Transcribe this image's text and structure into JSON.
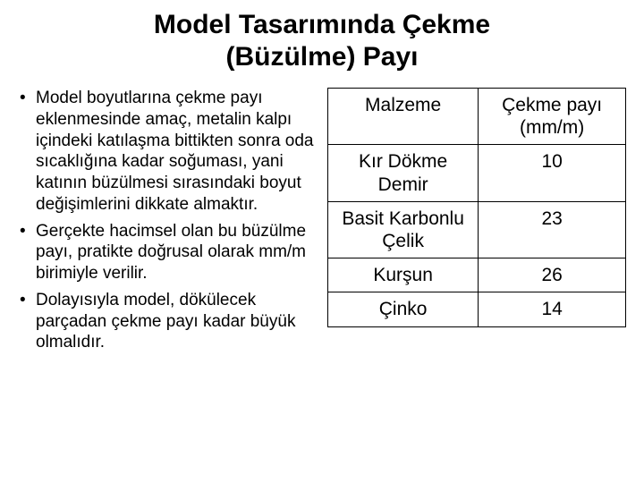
{
  "title_line1": "Model Tasarımında Çekme",
  "title_line2": "(Büzülme) Payı",
  "bullets": [
    "Model boyutlarına çekme payı eklenmesinde amaç, metalin kalpı içindeki katılaşma bittikten sonra oda sıcaklığına kadar soğuması, yani katının büzülmesi sırasındaki boyut değişimlerini dikkate almaktır.",
    "Gerçekte hacimsel olan bu büzülme payı, pratikte doğrusal olarak mm/m birimiyle verilir.",
    "Dolayısıyla model, dökülecek parçadan çekme payı kadar büyük olmalıdır."
  ],
  "table": {
    "columns": [
      "Malzeme",
      "Çekme payı (mm/m)"
    ],
    "rows": [
      [
        "Kır Dökme Demir",
        "10"
      ],
      [
        "Basit Karbonlu Çelik",
        "23"
      ],
      [
        "Kurşun",
        "26"
      ],
      [
        "Çinko",
        "14"
      ]
    ],
    "border_color": "#000000",
    "background_color": "#ffffff",
    "header_fontsize": 21,
    "cell_fontsize": 21
  },
  "colors": {
    "text": "#000000",
    "background": "#ffffff"
  },
  "typography": {
    "title_fontsize": 30,
    "title_weight": "bold",
    "bullet_fontsize": 19,
    "font_family": "Arial"
  }
}
